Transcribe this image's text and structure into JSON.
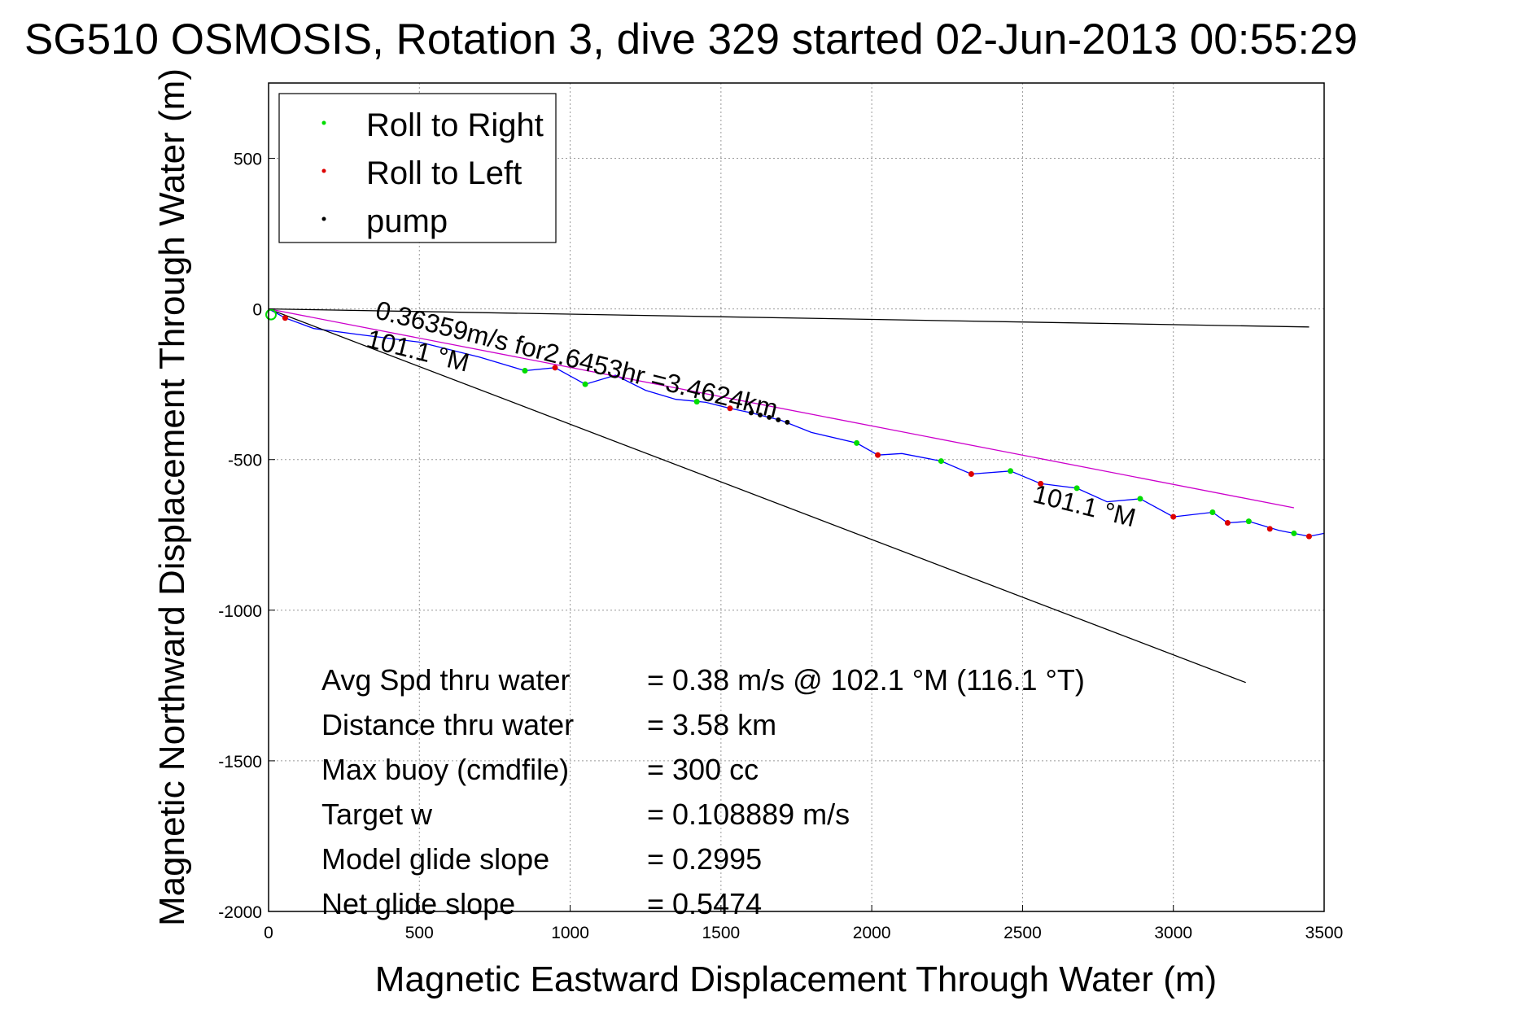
{
  "chart_data": {
    "type": "line",
    "title": "SG510 OSMOSIS, Rotation 3, dive 329 started 02-Jun-2013 00:55:29",
    "xlabel": "Magnetic Eastward Displacement Through Water (m)",
    "ylabel": "Magnetic Northward Displacement Through Water (m)",
    "xlim": [
      0,
      3500
    ],
    "ylim": [
      -2000,
      750
    ],
    "xticks": [
      0,
      500,
      1000,
      1500,
      2000,
      2500,
      3000,
      3500
    ],
    "yticks": [
      500,
      0,
      -500,
      -1000,
      -1500,
      -2000
    ],
    "grid": true,
    "legend": {
      "placement": "top-left",
      "entries": [
        {
          "label": "Roll to Right",
          "color": "#00dd00"
        },
        {
          "label": "Roll to Left",
          "color": "#dd0000"
        },
        {
          "label": "pump",
          "color": "#000000"
        }
      ]
    },
    "series": [
      {
        "kind": "track",
        "color": "#0000ff",
        "x": [
          0,
          55,
          150,
          300,
          500,
          700,
          850,
          950,
          1050,
          1150,
          1250,
          1350,
          1450,
          1530,
          1600,
          1700,
          1800,
          1950,
          2020,
          2100,
          2230,
          2330,
          2460,
          2560,
          2680,
          2780,
          2890,
          3000,
          3130,
          3180,
          3250,
          3350,
          3450,
          3500
        ],
        "y": [
          0,
          -30,
          -65,
          -85,
          -110,
          -160,
          -205,
          -195,
          -250,
          -220,
          -270,
          -300,
          -310,
          -330,
          -345,
          -370,
          -410,
          -445,
          -485,
          -480,
          -505,
          -548,
          -538,
          -580,
          -595,
          -640,
          -630,
          -690,
          -675,
          -710,
          -705,
          -735,
          -755,
          -745
        ]
      },
      {
        "kind": "heading line 101.1 °M",
        "color": "#000000",
        "x": [
          0,
          3240
        ],
        "y": [
          0,
          -1240
        ]
      },
      {
        "kind": "speed line",
        "color": "#cc00cc",
        "x": [
          0,
          3400
        ],
        "y": [
          0,
          -660
        ]
      },
      {
        "kind": "reference line",
        "color": "#000000",
        "x": [
          0,
          3450
        ],
        "y": [
          0,
          -60
        ]
      }
    ],
    "markers": {
      "roll_right": {
        "color": "#00dd00",
        "x": [
          850,
          1050,
          1420,
          1950,
          2230,
          2460,
          2680,
          2890,
          3130,
          3250,
          3400
        ],
        "y": [
          -205,
          -250,
          -308,
          -445,
          -505,
          -538,
          -595,
          -630,
          -675,
          -705,
          -745
        ]
      },
      "roll_left": {
        "color": "#dd0000",
        "x": [
          55,
          950,
          1530,
          2020,
          2330,
          2560,
          3000,
          3180,
          3320,
          3450
        ],
        "y": [
          -30,
          -195,
          -330,
          -485,
          -548,
          -580,
          -690,
          -710,
          -730,
          -755
        ]
      },
      "pump": {
        "color": "#000000",
        "x": [
          1600,
          1630,
          1660,
          1690,
          1720
        ],
        "y": [
          -345,
          -352,
          -360,
          -368,
          -376
        ]
      }
    },
    "annotations": [
      {
        "text": "0.36359m/s for2.6453hr =3.4624km",
        "x": 350,
        "y": -30,
        "rotation": 14
      },
      {
        "text": "101.1 °M",
        "x": 320,
        "y": -125,
        "rotation": 14
      },
      {
        "text": "101.1 °M",
        "x": 2530,
        "y": -640,
        "rotation": 14
      }
    ],
    "stats": [
      {
        "label": "Avg Spd thru water",
        "value": "=  0.38 m/s @ 102.1 °M (116.1 °T)"
      },
      {
        "label": "Distance thru water",
        "value": "=  3.58 km"
      },
      {
        "label": "Max buoy (cmdfile)",
        "value": "= 300 cc"
      },
      {
        "label": "Target w",
        "value": "= 0.108889 m/s"
      },
      {
        "label": "Model glide slope",
        "value": "= 0.2995"
      },
      {
        "label": "Net glide slope",
        "value": "= 0.5474"
      }
    ]
  }
}
